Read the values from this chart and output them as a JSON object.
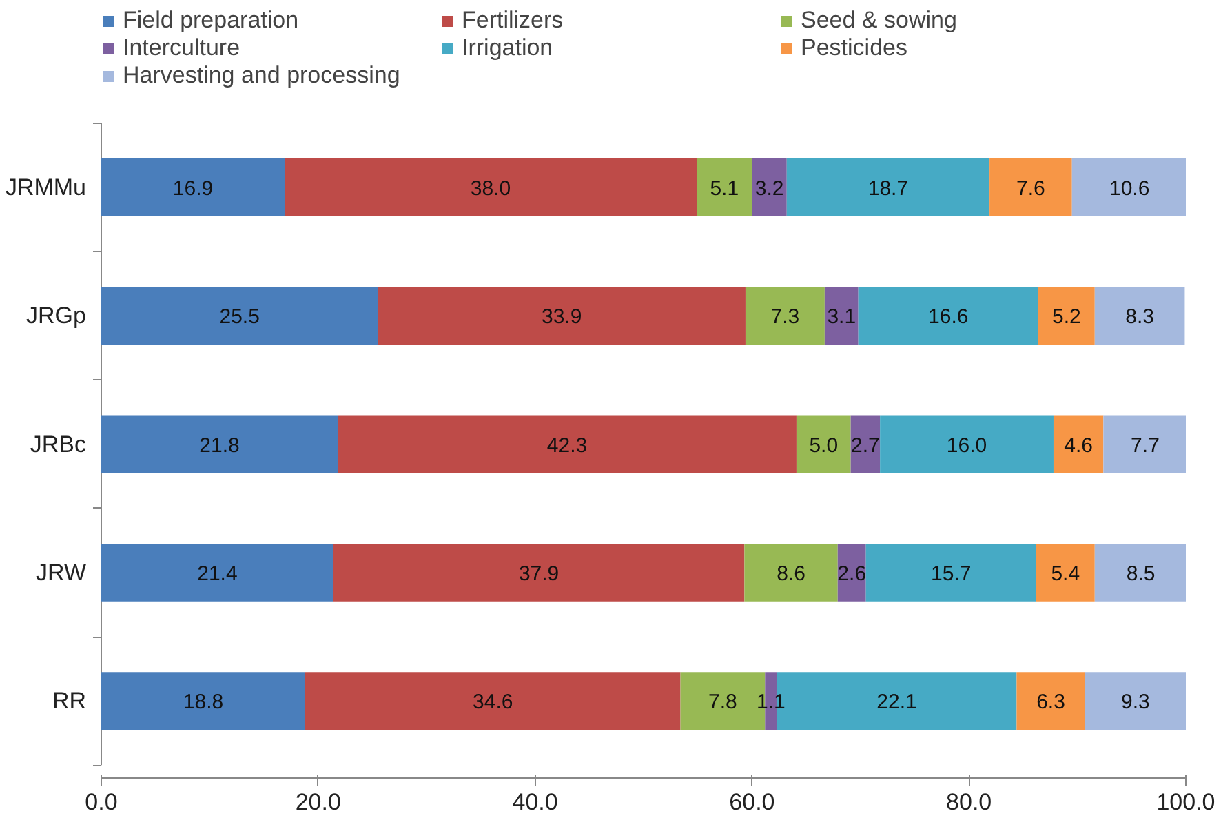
{
  "chart_data": {
    "type": "bar",
    "orientation": "horizontal",
    "stacked": true,
    "grid": false,
    "legend": "top",
    "categories": [
      "JRMMu",
      "JRGp",
      "JRBc",
      "JRW",
      "RR"
    ],
    "series": [
      {
        "name": "Field preparation",
        "color": "#4a7ebb",
        "values": [
          16.9,
          25.5,
          21.8,
          21.4,
          18.8
        ],
        "value_labels": [
          "16.9",
          "25.5",
          "21.8",
          "21.4",
          "18.8"
        ]
      },
      {
        "name": "Fertilizers",
        "color": "#be4b48",
        "values": [
          38.0,
          33.9,
          42.3,
          37.9,
          34.6
        ],
        "value_labels": [
          "38.0",
          "33.9",
          "42.3",
          "37.9",
          "34.6"
        ]
      },
      {
        "name": "Seed & sowing",
        "color": "#98b954",
        "values": [
          5.1,
          7.3,
          5.0,
          8.6,
          7.8
        ],
        "value_labels": [
          "5.1",
          "7.3",
          "5.0",
          "8.6",
          "7.8"
        ]
      },
      {
        "name": "Interculture",
        "color": "#7d60a0",
        "values": [
          3.2,
          3.1,
          2.7,
          2.6,
          1.1
        ],
        "value_labels": [
          "3.2",
          "3.1",
          "2.7",
          "2.6",
          "1.1"
        ]
      },
      {
        "name": "Irrigation",
        "color": "#46aac5",
        "values": [
          18.7,
          16.6,
          16.0,
          15.7,
          22.1
        ],
        "value_labels": [
          "18.7",
          "16.6",
          "16.0",
          "15.7",
          "22.1"
        ]
      },
      {
        "name": "Pesticides",
        "color": "#f79646",
        "values": [
          7.6,
          5.2,
          4.6,
          5.4,
          6.3
        ],
        "value_labels": [
          "7.6",
          "5.2",
          "4.6",
          "5.4",
          "6.3"
        ]
      },
      {
        "name": "Harvesting and processing",
        "color": "#a5b9de",
        "values": [
          10.6,
          8.3,
          7.7,
          8.5,
          9.3
        ],
        "value_labels": [
          "10.6",
          "8.3",
          "7.7",
          "8.5",
          "9.3"
        ]
      }
    ],
    "xlim": [
      0,
      100
    ],
    "xticks": [
      {
        "value": 0,
        "label": "0.0"
      },
      {
        "value": 20,
        "label": "20.0"
      },
      {
        "value": 40,
        "label": "40.0"
      },
      {
        "value": 60,
        "label": "60.0"
      },
      {
        "value": 80,
        "label": "80.0"
      },
      {
        "value": 100,
        "label": "100.0"
      }
    ]
  }
}
